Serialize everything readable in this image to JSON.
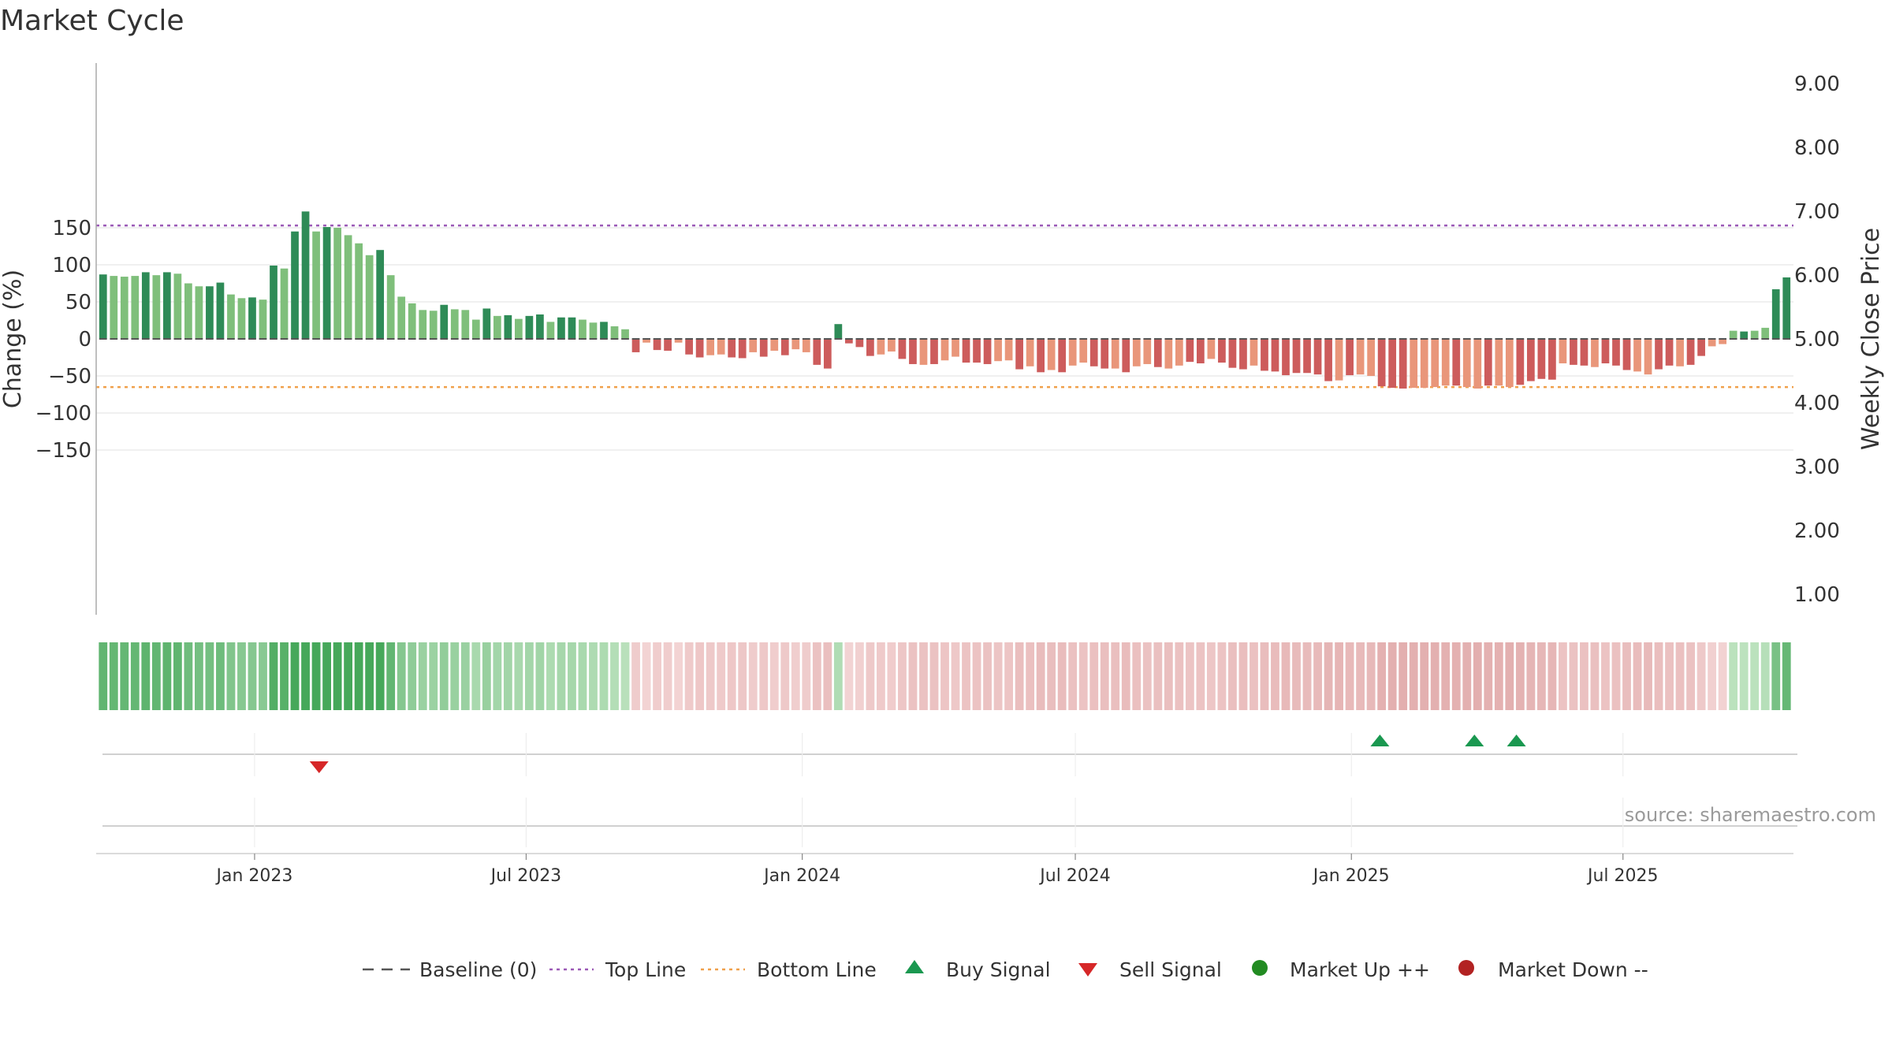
{
  "chart_data": {
    "type": "bar",
    "title": "Market Cycle",
    "ylabel": "Change (%)",
    "y2label": "Weekly Close Price",
    "ylim": [
      -185,
      185
    ],
    "yticks": [
      150,
      100,
      50,
      0,
      -50,
      -100,
      -150
    ],
    "ytick_labels": [
      "150",
      "100",
      "50",
      "0",
      "−50",
      "−100",
      "−150"
    ],
    "y2lim": [
      0.6,
      9.2
    ],
    "y2ticks": [
      9,
      8,
      7,
      6,
      5,
      4,
      3,
      2,
      1
    ],
    "y2tick_labels": [
      "9.00",
      "8.00",
      "7.00",
      "6.00",
      "5.00",
      "4.00",
      "3.00",
      "2.00",
      "1.00"
    ],
    "x_start": "2022-09-19",
    "x_end": "2025-10-20",
    "bar_interval": "weekly",
    "xticks": [
      "2023-01-01",
      "2023-07-01",
      "2024-01-01",
      "2024-07-01",
      "2025-01-01",
      "2025-07-01"
    ],
    "xtick_labels": [
      "Jan 2023",
      "Jul 2023",
      "Jan 2024",
      "Jul 2024",
      "Jan 2025",
      "Jul 2025"
    ],
    "top_line": 153,
    "bottom_line": -65,
    "baseline": 0,
    "grid": true,
    "legend_placement": "bottom-center",
    "colors": {
      "dark_green": "#2e8b57",
      "light_green": "#7fbf7b",
      "dark_red": "#cd5c5c",
      "light_red": "#e9967a",
      "top_line": "#9b59b6",
      "bottom_line": "#f0a04b",
      "baseline": "#555555",
      "buy": "#1a9850",
      "sell": "#d62728",
      "market_up": "#228b22",
      "market_down": "#b22222"
    },
    "series": [
      {
        "name": "Change (%)",
        "values": [
          87,
          85,
          84,
          85,
          90,
          86,
          90,
          88,
          75,
          71,
          71,
          76,
          60,
          55,
          56,
          53,
          99,
          95,
          145,
          172,
          145,
          151,
          150,
          140,
          129,
          113,
          120,
          86,
          57,
          48,
          39,
          38,
          46,
          40,
          39,
          26,
          41,
          31,
          32,
          27,
          31,
          33,
          23,
          29,
          29,
          26,
          22,
          23,
          17,
          13,
          -18,
          -5,
          -15,
          -16,
          -5,
          -21,
          -25,
          -22,
          -21,
          -25,
          -26,
          -18,
          -24,
          -16,
          -22,
          -14,
          -18,
          -35,
          -40,
          20,
          -6,
          -11,
          -23,
          -21,
          -17,
          -27,
          -34,
          -35,
          -34,
          -29,
          -24,
          -32,
          -32,
          -34,
          -30,
          -29,
          -41,
          -37,
          -45,
          -42,
          -45,
          -36,
          -32,
          -37,
          -40,
          -40,
          -45,
          -37,
          -34,
          -38,
          -40,
          -36,
          -31,
          -33,
          -27,
          -32,
          -39,
          -41,
          -36,
          -43,
          -44,
          -49,
          -46,
          -46,
          -48,
          -57,
          -56,
          -49,
          -48,
          -50,
          -64,
          -66,
          -67,
          -66,
          -66,
          -65,
          -63,
          -63,
          -65,
          -67,
          -63,
          -63,
          -65,
          -62,
          -57,
          -54,
          -55,
          -33,
          -35,
          -36,
          -38,
          -33,
          -36,
          -42,
          -44,
          -48,
          -41,
          -36,
          -37,
          -35,
          -23,
          -10,
          -7,
          11,
          10,
          11,
          15,
          67,
          83
        ],
        "shade": [
          0,
          1,
          1,
          1,
          0,
          1,
          0,
          1,
          1,
          1,
          0,
          0,
          1,
          1,
          0,
          1,
          0,
          1,
          0,
          0,
          1,
          0,
          1,
          1,
          1,
          1,
          0,
          1,
          1,
          1,
          1,
          1,
          0,
          1,
          1,
          1,
          0,
          1,
          0,
          1,
          0,
          0,
          1,
          0,
          0,
          1,
          1,
          0,
          1,
          1,
          0,
          1,
          0,
          0,
          1,
          0,
          0,
          1,
          1,
          0,
          0,
          1,
          0,
          1,
          0,
          1,
          1,
          0,
          0,
          0,
          0,
          0,
          0,
          1,
          1,
          0,
          0,
          1,
          0,
          1,
          1,
          0,
          0,
          0,
          1,
          1,
          0,
          1,
          0,
          1,
          0,
          1,
          1,
          0,
          0,
          1,
          0,
          1,
          1,
          0,
          1,
          1,
          0,
          0,
          1,
          0,
          0,
          0,
          1,
          0,
          0,
          0,
          0,
          0,
          0,
          0,
          1,
          0,
          1,
          1,
          0,
          0,
          0,
          1,
          1,
          1,
          1,
          0,
          1,
          1,
          0,
          1,
          1,
          0,
          0,
          0,
          0,
          1,
          0,
          0,
          1,
          0,
          0,
          0,
          1,
          1,
          0,
          0,
          1,
          0,
          0,
          1,
          1,
          1,
          0,
          1,
          1,
          0,
          0,
          0
        ]
      }
    ],
    "buy_signals": [
      "2025-01-20",
      "2025-03-24",
      "2025-04-21"
    ],
    "sell_signals": [
      "2023-02-13"
    ],
    "legend": [
      {
        "label": "Baseline (0)",
        "marker": "dash"
      },
      {
        "label": "Top Line",
        "marker": "dotted-purple"
      },
      {
        "label": "Bottom Line",
        "marker": "dotted-orange"
      },
      {
        "label": "Buy Signal",
        "marker": "triangle-up"
      },
      {
        "label": "Sell Signal",
        "marker": "triangle-down"
      },
      {
        "label": "Market Up ++",
        "marker": "circle-green"
      },
      {
        "label": "Market Down --",
        "marker": "circle-red"
      }
    ],
    "source": "source: sharemaestro.com"
  }
}
